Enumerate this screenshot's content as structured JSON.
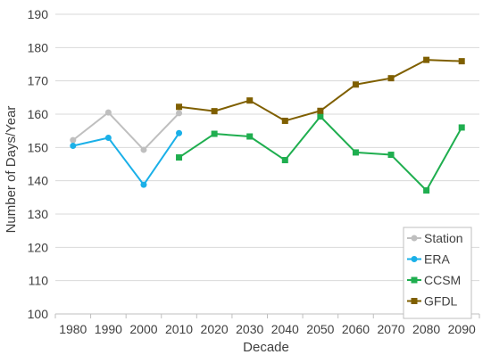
{
  "chart_data": {
    "type": "line",
    "xlabel": "Decade",
    "ylabel": "Number of Days/Year",
    "ylim": [
      100,
      190
    ],
    "yticks": [
      100,
      110,
      120,
      130,
      140,
      150,
      160,
      170,
      180,
      190
    ],
    "categories": [
      "1980",
      "1990",
      "2000",
      "2010",
      "2020",
      "2030",
      "2040",
      "2050",
      "2060",
      "2070",
      "2080",
      "2090"
    ],
    "grid": "horizontal",
    "legend_position": "bottom-right",
    "series": [
      {
        "name": "Station",
        "color": "#bfbfbf",
        "marker": "circle",
        "values": [
          152.2,
          160.5,
          149.3,
          160.3,
          null,
          null,
          null,
          null,
          null,
          null,
          null,
          null
        ]
      },
      {
        "name": "ERA",
        "color": "#1ab0e8",
        "marker": "circle",
        "values": [
          150.5,
          152.9,
          138.8,
          154.3,
          null,
          null,
          null,
          null,
          null,
          null,
          null,
          null
        ]
      },
      {
        "name": "CCSM",
        "color": "#1fae4f",
        "marker": "square",
        "values": [
          null,
          null,
          null,
          147.0,
          154.1,
          153.3,
          146.2,
          159.3,
          148.5,
          147.8,
          137.1,
          156.0
        ]
      },
      {
        "name": "GFDL",
        "color": "#7f5f00",
        "marker": "square",
        "values": [
          null,
          null,
          null,
          162.2,
          160.9,
          164.1,
          158.0,
          161.0,
          168.9,
          170.8,
          176.3,
          175.9
        ]
      }
    ]
  }
}
